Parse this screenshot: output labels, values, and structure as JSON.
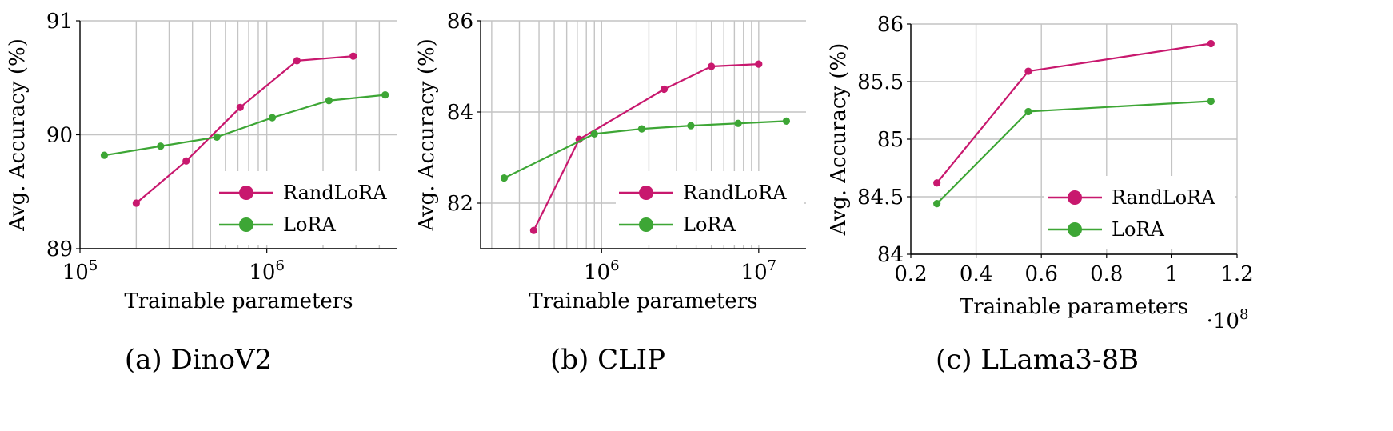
{
  "legend_entries": [
    "RandLoRA",
    "LoRA"
  ],
  "colors": {
    "randlora": "#c8186e",
    "lora": "#3da635"
  },
  "chart_data": [
    {
      "type": "line",
      "caption": "(a) DinoV2",
      "xlabel": "Trainable parameters",
      "ylabel": "Avg. Accuracy (%)",
      "xscale": "log",
      "xlim": [
        100000,
        5000000
      ],
      "ylim": [
        89,
        91
      ],
      "yticks": [
        89,
        90,
        91
      ],
      "xticks": [
        {
          "value": 100000,
          "base": "10",
          "exp": "5"
        },
        {
          "value": 1000000,
          "base": "10",
          "exp": "6"
        }
      ],
      "legend_position": "lower-right",
      "grid": true,
      "series": [
        {
          "name": "RandLoRA",
          "x": [
            200000,
            370000,
            720000,
            1450000,
            2900000
          ],
          "y": [
            89.4,
            89.77,
            90.24,
            90.65,
            90.69
          ]
        },
        {
          "name": "LoRA",
          "x": [
            135000,
            270000,
            540000,
            1070000,
            2150000,
            4300000
          ],
          "y": [
            89.82,
            89.9,
            89.98,
            90.15,
            90.3,
            90.35
          ]
        }
      ]
    },
    {
      "type": "line",
      "caption": "(b) CLIP",
      "xlabel": "Trainable parameters",
      "ylabel": "Avg. Accuracy (%)",
      "xscale": "log",
      "xlim": [
        170000,
        20000000
      ],
      "ylim": [
        81,
        86
      ],
      "yticks": [
        82,
        84,
        86
      ],
      "xticks": [
        {
          "value": 1000000,
          "base": "10",
          "exp": "6"
        },
        {
          "value": 10000000,
          "base": "10",
          "exp": "7"
        }
      ],
      "legend_position": "lower-right",
      "grid": true,
      "series": [
        {
          "name": "RandLoRA",
          "x": [
            370000,
            720000,
            2500000,
            5000000,
            10000000
          ],
          "y": [
            81.4,
            83.4,
            84.5,
            85.0,
            85.05
          ]
        },
        {
          "name": "LoRA",
          "x": [
            240000,
            900000,
            1800000,
            3700000,
            7400000,
            15000000
          ],
          "y": [
            82.55,
            83.52,
            83.63,
            83.7,
            83.75,
            83.8
          ]
        }
      ]
    },
    {
      "type": "line",
      "caption": "(c) LLama3-8B",
      "xlabel": "Trainable parameters",
      "ylabel": "Avg. Accuracy (%)",
      "xscale": "linear",
      "xlim": [
        0.2,
        1.2
      ],
      "ylim": [
        84,
        86
      ],
      "yticks": [
        84,
        84.5,
        85,
        85.5,
        86
      ],
      "ytick_labels": [
        "84",
        "84.5",
        "85",
        "85.5",
        "86"
      ],
      "xticks": [
        0.2,
        0.4,
        0.6,
        0.8,
        1,
        1.2
      ],
      "xtick_labels": [
        "0.2",
        "0.4",
        "0.6",
        "0.8",
        "1",
        "1.2"
      ],
      "x_multiplier": {
        "base": "·10",
        "exp": "8"
      },
      "legend_position": "lower-right",
      "grid": true,
      "series": [
        {
          "name": "RandLoRA",
          "x": [
            0.28,
            0.56,
            1.12
          ],
          "y": [
            84.62,
            85.59,
            85.83
          ]
        },
        {
          "name": "LoRA",
          "x": [
            0.28,
            0.56,
            1.12
          ],
          "y": [
            84.44,
            85.24,
            85.33
          ]
        }
      ]
    }
  ]
}
